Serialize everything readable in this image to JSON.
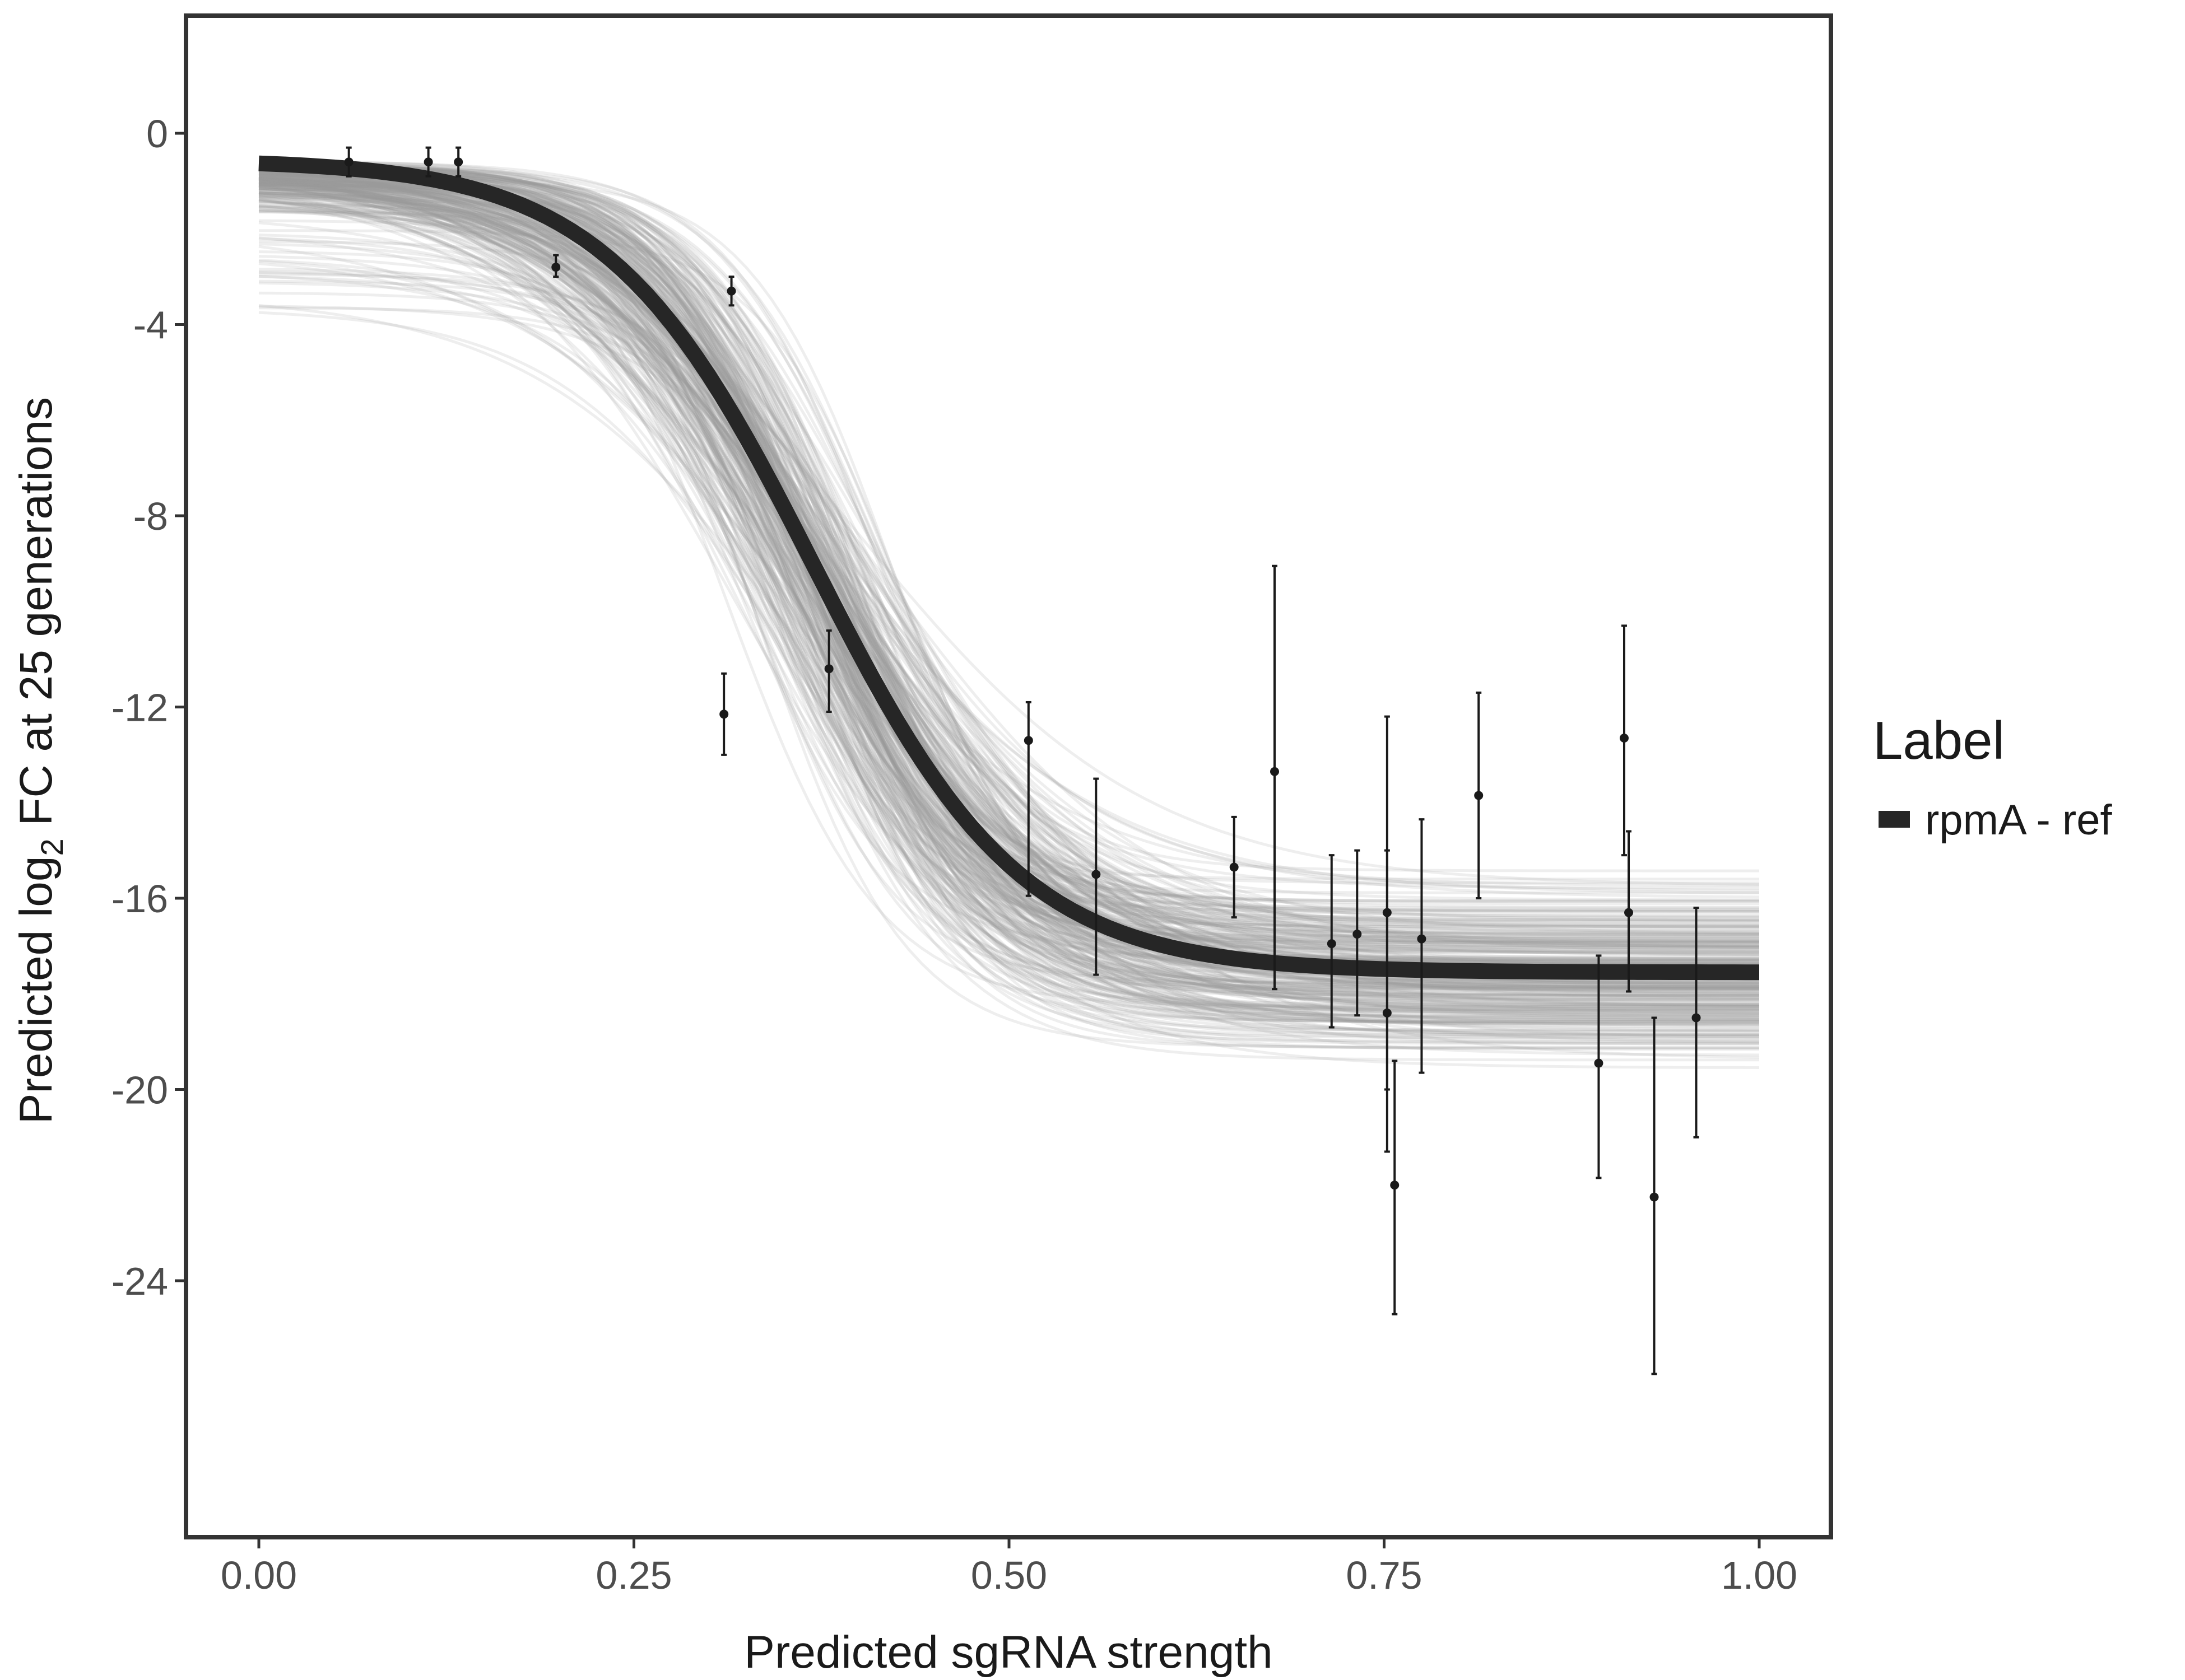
{
  "chart_data": {
    "type": "line",
    "title": "",
    "xlabel": "Predicted sgRNA strength",
    "ylabel": {
      "prefix": "Predicted  log",
      "subscript": "2",
      "suffix": " FC at 25 generations"
    },
    "xlim": [
      -0.12,
      2.62
    ],
    "ylim": [
      -29.4,
      2.45
    ],
    "x_ticks": [
      0.0,
      0.25,
      0.5,
      0.75,
      1.0
    ],
    "x_tick_labels": [
      "0.00",
      "0.25",
      "0.50",
      "0.75",
      "1.00"
    ],
    "y_ticks": [
      0,
      -4,
      -8,
      -12,
      -16,
      -20,
      -24
    ],
    "y_tick_labels": [
      "0",
      "-4",
      "-8",
      "-12",
      "-16",
      "-20",
      "-24"
    ],
    "grid": false,
    "legend": {
      "title": "Label",
      "placement": "right",
      "entries": [
        {
          "label": "rpmA - ref",
          "color": "#262626"
        }
      ]
    },
    "colors": {
      "fit_line": "#262626",
      "posterior_lines": "#9a9a9a",
      "points": "#1a1a1a",
      "frame": "#333333"
    },
    "series": [
      {
        "name": "rpmA - ref",
        "kind": "fitted_curve",
        "model": "logistic",
        "params": {
          "upper": -0.55,
          "lower": -17.55,
          "midpoint": 0.37,
          "rate": 14.5
        }
      },
      {
        "kind": "posterior_draws",
        "count": 300
      },
      {
        "kind": "observations_with_error_bars",
        "points": [
          {
            "x": 0.06,
            "y": -0.6,
            "ymin": -0.9,
            "ymax": -0.3
          },
          {
            "x": 0.113,
            "y": -0.6,
            "ymin": -0.9,
            "ymax": -0.3
          },
          {
            "x": 0.133,
            "y": -0.6,
            "ymin": -0.9,
            "ymax": -0.3
          },
          {
            "x": 0.198,
            "y": -2.8,
            "ymin": -3.0,
            "ymax": -2.55
          },
          {
            "x": 0.31,
            "y": -12.15,
            "ymin": -13.0,
            "ymax": -11.3
          },
          {
            "x": 0.315,
            "y": -3.3,
            "ymin": -3.6,
            "ymax": -3.0
          },
          {
            "x": 0.38,
            "y": -11.2,
            "ymin": -12.1,
            "ymax": -10.4
          },
          {
            "x": 0.513,
            "y": -12.7,
            "ymin": -15.95,
            "ymax": -11.9
          },
          {
            "x": 0.558,
            "y": -15.5,
            "ymin": -17.6,
            "ymax": -13.5
          },
          {
            "x": 0.65,
            "y": -15.35,
            "ymin": -16.4,
            "ymax": -14.3
          },
          {
            "x": 0.677,
            "y": -13.35,
            "ymin": -17.9,
            "ymax": -9.05
          },
          {
            "x": 0.715,
            "y": -16.95,
            "ymin": -18.7,
            "ymax": -15.1
          },
          {
            "x": 0.732,
            "y": -16.75,
            "ymin": -18.45,
            "ymax": -15.0
          },
          {
            "x": 0.752,
            "y": -18.4,
            "ymin": -21.3,
            "ymax": -15.0
          },
          {
            "x": 0.752,
            "y": -16.3,
            "ymin": -20.0,
            "ymax": -12.2
          },
          {
            "x": 0.757,
            "y": -22.0,
            "ymin": -24.7,
            "ymax": -19.4
          },
          {
            "x": 0.775,
            "y": -16.85,
            "ymin": -19.65,
            "ymax": -14.35
          },
          {
            "x": 0.813,
            "y": -13.85,
            "ymin": -16.0,
            "ymax": -11.7
          },
          {
            "x": 0.893,
            "y": -19.45,
            "ymin": -21.85,
            "ymax": -17.2
          },
          {
            "x": 0.91,
            "y": -12.65,
            "ymin": -15.1,
            "ymax": -10.3
          },
          {
            "x": 0.913,
            "y": -16.3,
            "ymin": -17.95,
            "ymax": -14.6
          },
          {
            "x": 0.93,
            "y": -22.25,
            "ymin": -25.95,
            "ymax": -18.5
          },
          {
            "x": 0.958,
            "y": -18.5,
            "ymin": -21.0,
            "ymax": -16.2
          }
        ]
      }
    ]
  }
}
